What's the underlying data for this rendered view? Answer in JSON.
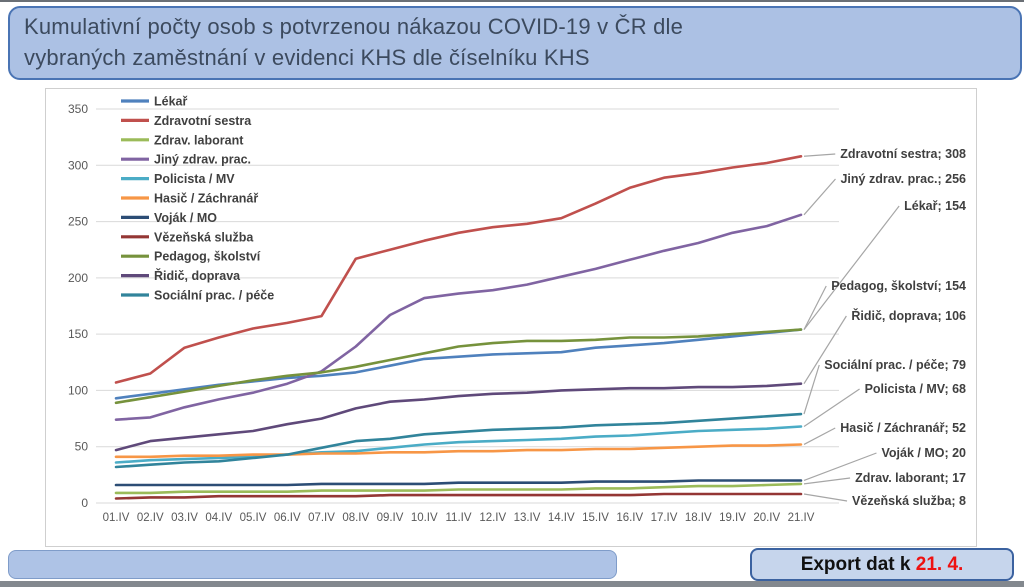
{
  "title": {
    "line1": "Kumulativní počty osob s potvrzenou nákazou COVID-19 v ČR dle",
    "line2": "vybraných zaměstnání v evidenci KHS dle číselníku KHS"
  },
  "export_box": {
    "prefix": "Export dat k ",
    "date": "21. 4."
  },
  "chart_data": {
    "type": "line",
    "x_labels": [
      "01.IV",
      "02.IV",
      "03.IV",
      "04.IV",
      "05.IV",
      "06.IV",
      "07.IV",
      "08.IV",
      "09.IV",
      "10.IV",
      "11.IV",
      "12.IV",
      "13.IV",
      "14.IV",
      "15.IV",
      "16.IV",
      "17.IV",
      "18.IV",
      "19.IV",
      "20.IV",
      "21.IV"
    ],
    "y_ticks": [
      0,
      50,
      100,
      150,
      200,
      250,
      300,
      350
    ],
    "ylim": [
      0,
      350
    ],
    "grid": true,
    "legend_position": "top-left",
    "series": [
      {
        "name": "Lékař",
        "color": "#4F81BD",
        "end_label": "Lékař; 154",
        "final_value": 154,
        "values": [
          93,
          97,
          101,
          105,
          108,
          111,
          113,
          116,
          122,
          128,
          130,
          132,
          133,
          134,
          138,
          140,
          142,
          145,
          148,
          151,
          154
        ]
      },
      {
        "name": "Zdravotní sestra",
        "color": "#C0504D",
        "end_label": "Zdravotní sestra; 308",
        "final_value": 308,
        "values": [
          107,
          115,
          138,
          147,
          155,
          160,
          166,
          217,
          225,
          233,
          240,
          245,
          248,
          253,
          266,
          280,
          289,
          293,
          298,
          302,
          308
        ]
      },
      {
        "name": "Zdrav. laborant",
        "color": "#9BBB59",
        "end_label": "Zdrav. laborant; 17",
        "final_value": 17,
        "values": [
          9,
          9,
          10,
          10,
          10,
          10,
          11,
          11,
          11,
          11,
          12,
          12,
          12,
          12,
          13,
          13,
          14,
          15,
          15,
          16,
          17
        ]
      },
      {
        "name": "Jiný zdrav. prac.",
        "color": "#8064A2",
        "end_label": "Jiný zdrav. prac.; 256",
        "final_value": 256,
        "values": [
          74,
          76,
          85,
          92,
          98,
          106,
          117,
          139,
          167,
          182,
          186,
          189,
          194,
          201,
          208,
          216,
          224,
          231,
          240,
          246,
          256
        ]
      },
      {
        "name": "Policista / MV",
        "color": "#4BACC6",
        "end_label": "Policista / MV; 68",
        "final_value": 68,
        "values": [
          36,
          38,
          39,
          40,
          41,
          43,
          45,
          46,
          49,
          52,
          54,
          55,
          56,
          57,
          59,
          60,
          62,
          64,
          65,
          66,
          68
        ]
      },
      {
        "name": "Hasič / Záchranář",
        "color": "#F79646",
        "end_label": "Hasič / Záchranář; 52",
        "final_value": 52,
        "values": [
          41,
          41,
          42,
          42,
          43,
          43,
          44,
          44,
          45,
          45,
          46,
          46,
          47,
          47,
          48,
          48,
          49,
          50,
          51,
          51,
          52
        ]
      },
      {
        "name": "Voják / MO",
        "color": "#2C4D75",
        "end_label": "Voják / MO; 20",
        "final_value": 20,
        "values": [
          16,
          16,
          16,
          16,
          16,
          16,
          17,
          17,
          17,
          17,
          18,
          18,
          18,
          18,
          19,
          19,
          19,
          20,
          20,
          20,
          20
        ]
      },
      {
        "name": "Vězeňská služba",
        "color": "#943634",
        "end_label": "Vězeňská služba; 8",
        "final_value": 8,
        "values": [
          4,
          5,
          5,
          6,
          6,
          6,
          6,
          6,
          7,
          7,
          7,
          7,
          7,
          7,
          7,
          7,
          8,
          8,
          8,
          8,
          8
        ]
      },
      {
        "name": "Pedagog, školství",
        "color": "#76923C",
        "end_label": "Pedagog, školství; 154",
        "final_value": 154,
        "values": [
          89,
          94,
          99,
          104,
          109,
          113,
          116,
          121,
          127,
          133,
          139,
          142,
          144,
          144,
          145,
          147,
          147,
          148,
          150,
          152,
          154
        ]
      },
      {
        "name": "Řidič, doprava",
        "color": "#5F497A",
        "end_label": "Řidič, doprava; 106",
        "final_value": 106,
        "values": [
          47,
          55,
          58,
          61,
          64,
          70,
          75,
          84,
          90,
          92,
          95,
          97,
          98,
          100,
          101,
          102,
          102,
          103,
          103,
          104,
          106
        ]
      },
      {
        "name": "Sociální prac. / péče",
        "color": "#31849B",
        "end_label": "Sociální prac. / péče; 79",
        "final_value": 79,
        "values": [
          32,
          34,
          36,
          37,
          40,
          43,
          49,
          55,
          57,
          61,
          63,
          65,
          66,
          67,
          69,
          70,
          71,
          73,
          75,
          77,
          79
        ]
      }
    ]
  }
}
